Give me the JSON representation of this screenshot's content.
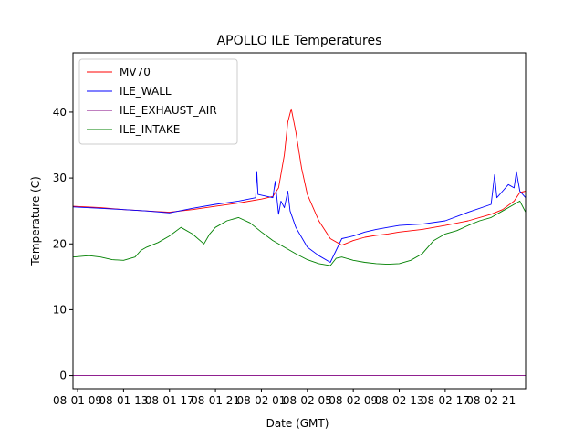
{
  "chart_data": {
    "type": "line",
    "title": "APOLLO ILE Temperatures",
    "xlabel": "Date (GMT)",
    "ylabel": "Temperature (C)",
    "x_unit": "hours since 08-01 09:00 GMT",
    "xlim": [
      -0.4,
      39.0
    ],
    "ylim": [
      -2.0,
      49.0
    ],
    "x_ticks": [
      {
        "value": 0,
        "label": "08-01 09"
      },
      {
        "value": 4,
        "label": "08-01 13"
      },
      {
        "value": 8,
        "label": "08-01 17"
      },
      {
        "value": 12,
        "label": "08-01 21"
      },
      {
        "value": 16,
        "label": "08-02 01"
      },
      {
        "value": 20,
        "label": "08-02 05"
      },
      {
        "value": 24,
        "label": "08-02 09"
      },
      {
        "value": 28,
        "label": "08-02 13"
      },
      {
        "value": 32,
        "label": "08-02 17"
      },
      {
        "value": 36,
        "label": "08-02 21"
      }
    ],
    "y_ticks": [
      0,
      10,
      20,
      30,
      40
    ],
    "grid": false,
    "legend_position": "top-left",
    "series": [
      {
        "name": "MV70",
        "color": "#ff0000",
        "x": [
          -0.4,
          2,
          4,
          6,
          8,
          10,
          12,
          14,
          16,
          17.0,
          17.5,
          18.0,
          18.3,
          18.6,
          19.0,
          19.5,
          20,
          21,
          22,
          23,
          24,
          25,
          26,
          27,
          28,
          30,
          32,
          34,
          36,
          37,
          38,
          38.5,
          39.0
        ],
        "y": [
          25.7,
          25.5,
          25.2,
          25.0,
          24.8,
          25.2,
          25.7,
          26.2,
          26.8,
          27.2,
          28.5,
          33.5,
          38.5,
          40.5,
          37.0,
          31.5,
          27.5,
          23.5,
          20.8,
          19.8,
          20.5,
          21.0,
          21.3,
          21.5,
          21.8,
          22.2,
          22.8,
          23.5,
          24.5,
          25.2,
          26.5,
          27.8,
          28.0
        ]
      },
      {
        "name": "ILE_WALL",
        "color": "#0000ff",
        "x": [
          -0.4,
          2,
          4,
          6,
          8,
          10,
          12,
          14,
          15.5,
          15.6,
          15.7,
          16,
          17.0,
          17.2,
          17.5,
          17.7,
          18.0,
          18.3,
          18.5,
          19,
          20,
          21,
          22,
          22.5,
          23,
          24,
          25,
          26,
          27,
          28,
          29,
          30,
          32,
          34,
          36,
          36.3,
          36.5,
          37,
          37.5,
          38,
          38.2,
          38.5,
          39.0
        ],
        "y": [
          25.6,
          25.4,
          25.2,
          25.0,
          24.7,
          25.4,
          26.0,
          26.5,
          27.0,
          31.0,
          27.5,
          27.4,
          27.0,
          29.5,
          24.5,
          26.5,
          25.5,
          28.0,
          25.0,
          22.5,
          19.5,
          18.2,
          17.2,
          19.0,
          20.8,
          21.2,
          21.8,
          22.2,
          22.5,
          22.8,
          22.9,
          23.0,
          23.5,
          24.8,
          26.0,
          30.5,
          27.0,
          28.0,
          29.0,
          28.5,
          31.0,
          28.0,
          27.0
        ]
      },
      {
        "name": "ILE_EXHAUST_AIR",
        "color": "#800080",
        "x": [
          -0.4,
          39.0
        ],
        "y": [
          0.0,
          0.0
        ]
      },
      {
        "name": "ILE_INTAKE",
        "color": "#008000",
        "x": [
          -0.4,
          1,
          2,
          3,
          4,
          5,
          5.5,
          6,
          7,
          8,
          9,
          10,
          11,
          11.5,
          12,
          13,
          14,
          15,
          16,
          17,
          18,
          19,
          20,
          21,
          22,
          22.5,
          23,
          24,
          25,
          26,
          27,
          28,
          29,
          30,
          31,
          32,
          33,
          34,
          35,
          36,
          37,
          38,
          38.5,
          39.0
        ],
        "y": [
          18.0,
          18.2,
          18.0,
          17.6,
          17.5,
          18.0,
          19.0,
          19.5,
          20.2,
          21.2,
          22.5,
          21.5,
          20.0,
          21.5,
          22.5,
          23.5,
          24.0,
          23.2,
          21.8,
          20.5,
          19.5,
          18.5,
          17.6,
          17.0,
          16.7,
          17.8,
          18.0,
          17.5,
          17.2,
          17.0,
          16.9,
          17.0,
          17.5,
          18.5,
          20.5,
          21.5,
          22.0,
          22.8,
          23.5,
          24.0,
          25.0,
          26.0,
          26.5,
          24.8
        ]
      }
    ]
  }
}
